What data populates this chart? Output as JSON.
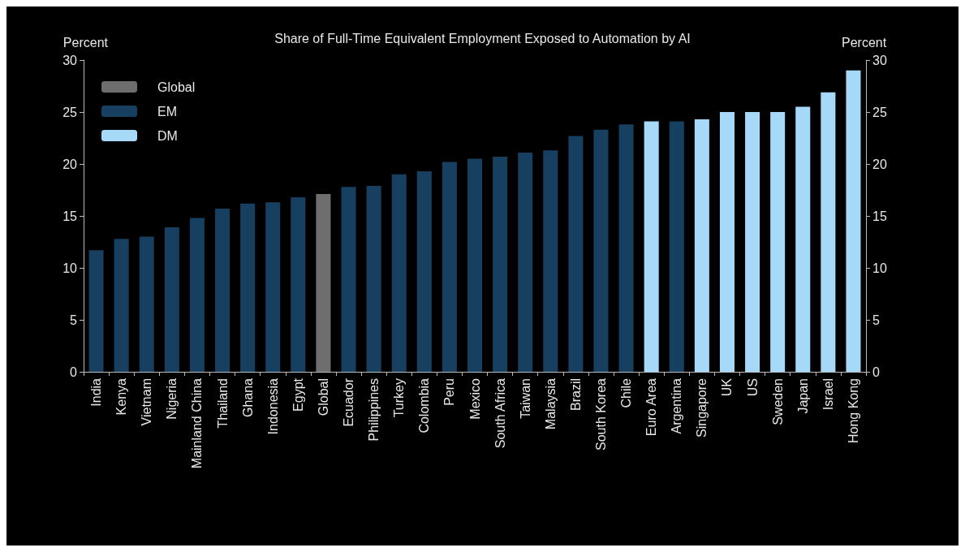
{
  "chart_data": {
    "type": "bar",
    "title": "Share of Full-Time Equivalent Employment Exposed to Automation by AI",
    "ylabel": "Percent",
    "y2label": "Percent",
    "categories": [
      "India",
      "Kenya",
      "Vietnam",
      "Nigeria",
      "Mainland China",
      "Thailand",
      "Ghana",
      "Indonesia",
      "Egypt",
      "Global",
      "Ecuador",
      "Philippines",
      "Turkey",
      "Colombia",
      "Peru",
      "Mexico",
      "South Africa",
      "Taiwan",
      "Malaysia",
      "Brazil",
      "South Korea",
      "Chile",
      "Euro Area",
      "Argentina",
      "Singapore",
      "UK",
      "US",
      "Sweden",
      "Japan",
      "Israel",
      "Hong Kong"
    ],
    "series": [
      {
        "name": "Global",
        "color": "#6e6e6e",
        "values": [
          null,
          null,
          null,
          null,
          null,
          null,
          null,
          null,
          null,
          17.1,
          null,
          null,
          null,
          null,
          null,
          null,
          null,
          null,
          null,
          null,
          null,
          null,
          null,
          null,
          null,
          null,
          null,
          null,
          null,
          null,
          null
        ]
      },
      {
        "name": "EM",
        "color": "#173f5f",
        "values": [
          11.7,
          12.8,
          13.0,
          13.9,
          14.8,
          15.7,
          16.2,
          16.3,
          16.8,
          null,
          17.8,
          17.9,
          19.0,
          19.3,
          20.2,
          20.5,
          20.7,
          21.1,
          21.3,
          22.7,
          23.3,
          23.8,
          null,
          24.1,
          null,
          null,
          null,
          null,
          null,
          null,
          null
        ]
      },
      {
        "name": "DM",
        "color": "#a6d8f8",
        "values": [
          null,
          null,
          null,
          null,
          null,
          null,
          null,
          null,
          null,
          null,
          null,
          null,
          null,
          null,
          null,
          null,
          null,
          null,
          null,
          null,
          null,
          null,
          24.1,
          null,
          24.3,
          25.0,
          25.0,
          25.0,
          25.5,
          26.9,
          29.0
        ]
      }
    ],
    "ylim": [
      0,
      30
    ],
    "yticks": [
      0,
      5,
      10,
      15,
      20,
      25,
      30
    ],
    "y2lim": [
      0,
      30
    ],
    "y2ticks": [
      0,
      5,
      10,
      15,
      20,
      25,
      30
    ],
    "grid": false,
    "legend": "top left"
  }
}
